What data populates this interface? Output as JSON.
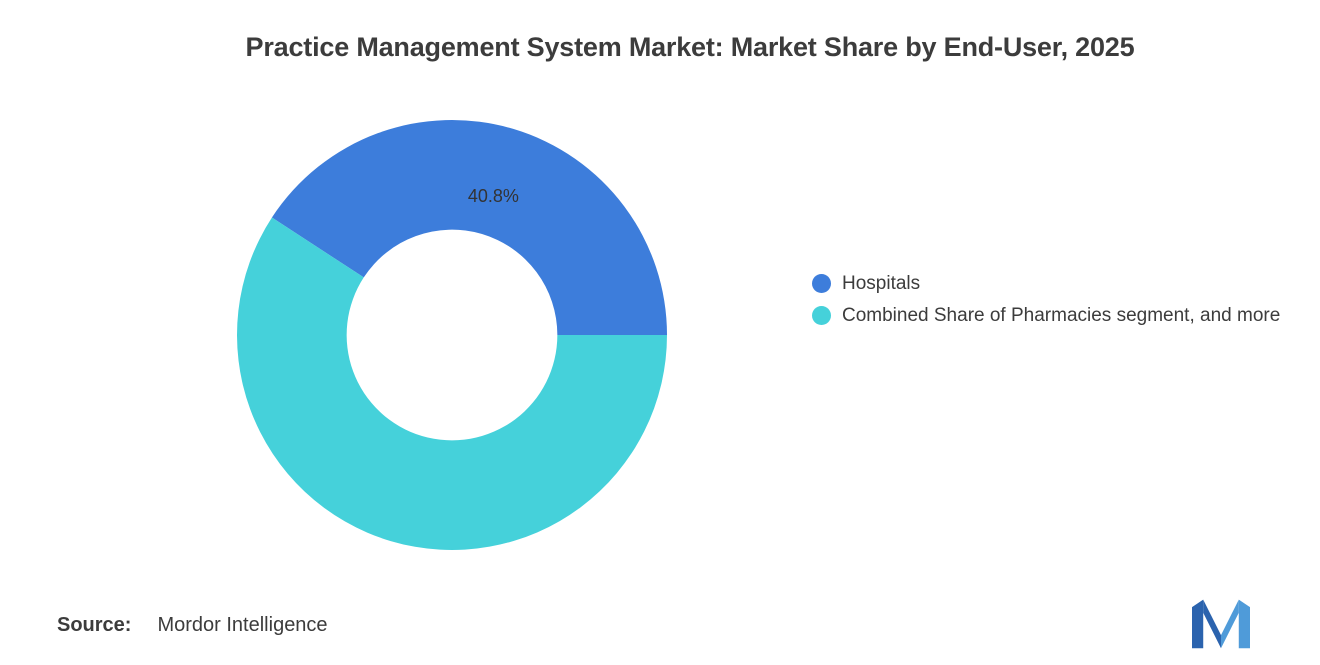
{
  "title": "Practice Management System Market: Market Share by End-User, 2025",
  "chart_data": {
    "type": "pie",
    "subtype": "donut",
    "title": "Practice Management System Market: Market Share by End-User, 2025",
    "labels": [
      "Hospitals",
      "Combined Share of Pharmacies segment, and more"
    ],
    "values": [
      40.8,
      59.2
    ],
    "colors": [
      "#3d7ddb",
      "#45d1da"
    ],
    "data_labels": [
      "40.8%",
      ""
    ],
    "start_angle_deg": 146.88,
    "inner_radius_ratio": 0.49,
    "legend_position": "right",
    "background": "#ffffff"
  },
  "legend": {
    "items": [
      {
        "label": "Hospitals",
        "color": "#3d7ddb"
      },
      {
        "label": "Combined Share of Pharmacies segment, and more",
        "color": "#45d1da"
      }
    ]
  },
  "source": {
    "label": "Source:",
    "value": "Mordor Intelligence"
  },
  "logo": {
    "name": "mordor-intelligence-logo",
    "dark_color": "#2b63ae",
    "light_color": "#4f9bd9"
  }
}
